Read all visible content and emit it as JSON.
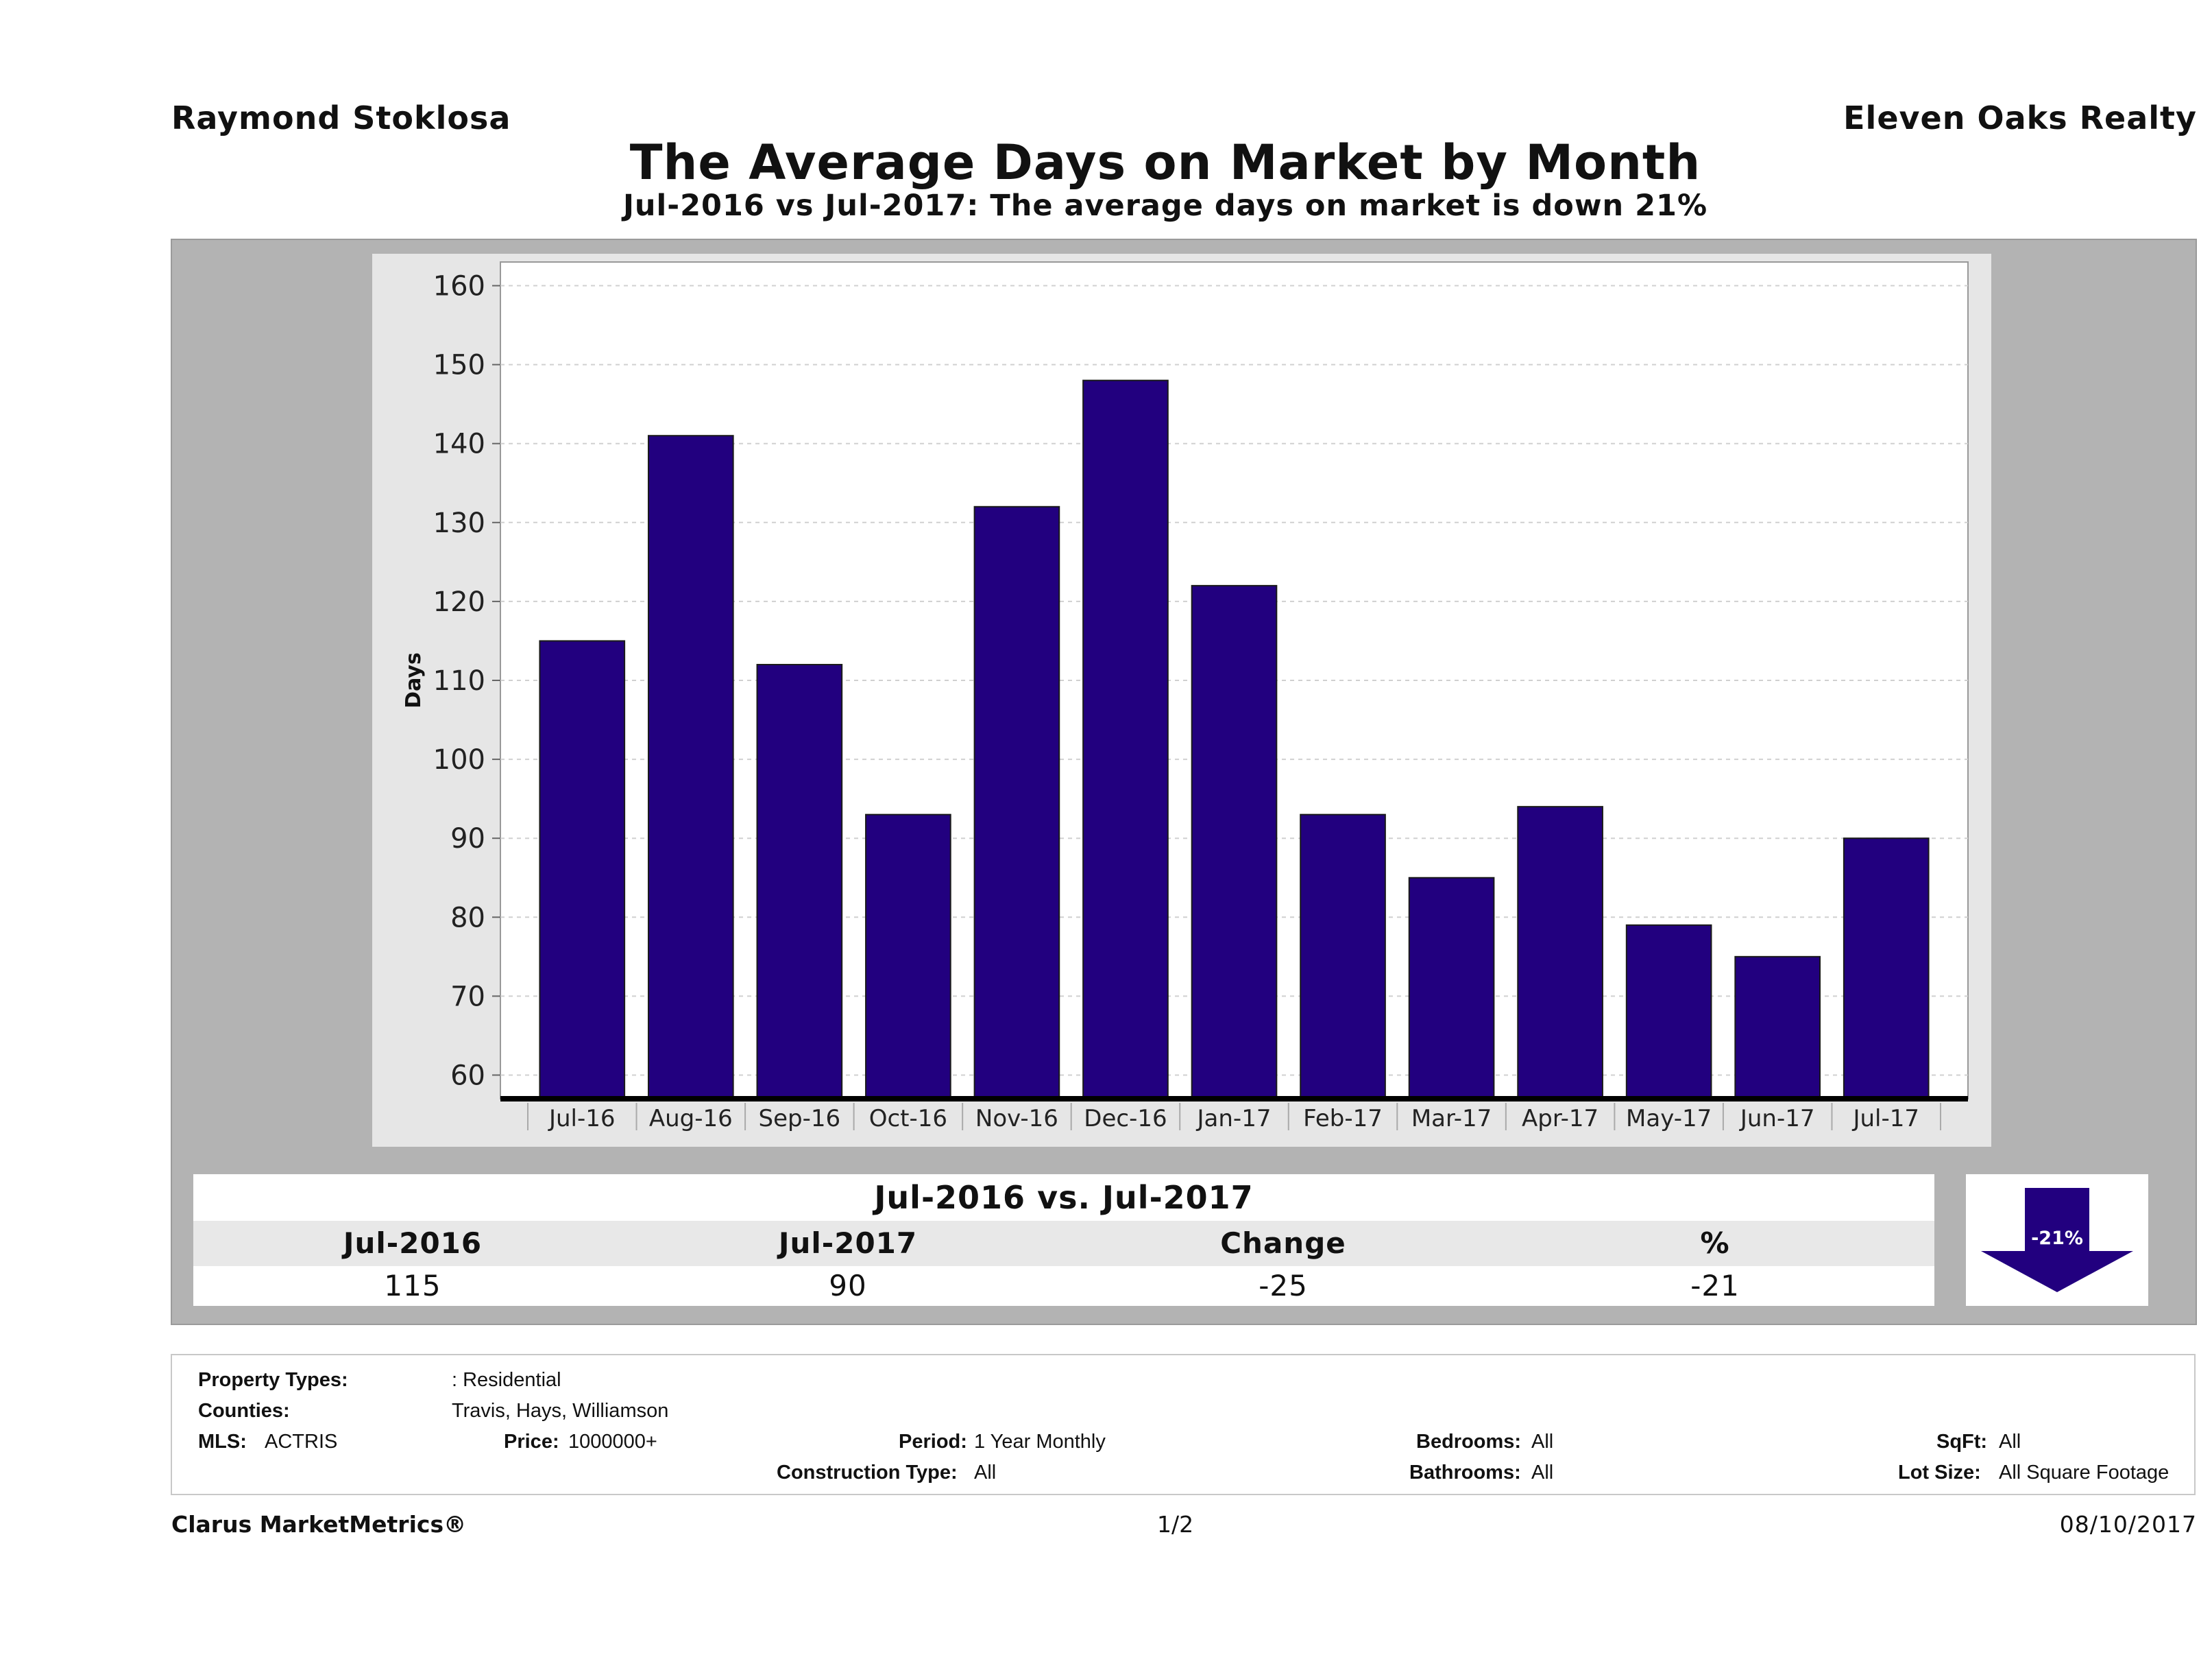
{
  "header": {
    "agent": "Raymond Stoklosa",
    "brokerage": "Eleven Oaks Realty",
    "title": "The Average Days on Market by Month",
    "subtitle": "Jul-2016 vs Jul-2017: The average days on market is down 21%"
  },
  "colors": {
    "bar": "#22007f",
    "panel": "#b3b3b3",
    "plot_bg": "#ffffff"
  },
  "chart_data": {
    "type": "bar",
    "categories": [
      "Jul-16",
      "Aug-16",
      "Sep-16",
      "Oct-16",
      "Nov-16",
      "Dec-16",
      "Jan-17",
      "Feb-17",
      "Mar-17",
      "Apr-17",
      "May-17",
      "Jun-17",
      "Jul-17"
    ],
    "values": [
      115,
      141,
      112,
      93,
      132,
      148,
      122,
      93,
      85,
      94,
      79,
      75,
      90
    ],
    "ylabel": "Days",
    "xlabel": "",
    "ylim": [
      57,
      163
    ],
    "yticks": [
      60,
      70,
      80,
      90,
      100,
      110,
      120,
      130,
      140,
      150,
      160
    ],
    "grid": true
  },
  "summary": {
    "heading": "Jul-2016 vs. Jul-2017",
    "columns": [
      "Jul-2016",
      "Jul-2017",
      "Change",
      "%"
    ],
    "values": [
      "115",
      "90",
      "-25",
      "-21"
    ],
    "arrow_label": "-21%",
    "arrow_icon": "down-arrow-icon"
  },
  "criteria": {
    "property_types_label": "Property Types:",
    "property_types_value": ": Residential",
    "counties_label": "Counties:",
    "counties_value": "Travis, Hays, Williamson",
    "mls_label": "MLS:",
    "mls_value": "ACTRIS",
    "price_label": "Price:",
    "price_value": "1000000+",
    "period_label": "Period:",
    "period_value": "1 Year Monthly",
    "construction_label": "Construction Type:",
    "construction_value": "All",
    "bedrooms_label": "Bedrooms:",
    "bedrooms_value": "All",
    "bathrooms_label": "Bathrooms:",
    "bathrooms_value": "All",
    "sqft_label": "SqFt:",
    "sqft_value": "All",
    "lot_label": "Lot Size:",
    "lot_value": "All Square Footage"
  },
  "footer": {
    "brand": "Clarus MarketMetrics®",
    "page": "1/2",
    "date": "08/10/2017"
  }
}
